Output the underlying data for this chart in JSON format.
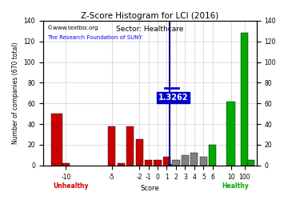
{
  "title": "Z-Score Histogram for LCI (2016)",
  "subtitle": "Sector: Healthcare",
  "xlabel": "Score",
  "ylabel": "Number of companies (670 total)",
  "watermark1": "©www.textbiz.org",
  "watermark2": "The Research Foundation of SUNY",
  "zscore_value": 1.3262,
  "ylim": [
    0,
    140
  ],
  "yticks": [
    0,
    20,
    40,
    60,
    80,
    100,
    120,
    140
  ],
  "bar_data": [
    {
      "x": -12,
      "height": 50,
      "color": "#cc0000"
    },
    {
      "x": -10,
      "height": 2,
      "color": "#cc0000"
    },
    {
      "x": -9,
      "height": 0,
      "color": "#cc0000"
    },
    {
      "x": -8,
      "height": 0,
      "color": "#cc0000"
    },
    {
      "x": -7,
      "height": 0,
      "color": "#cc0000"
    },
    {
      "x": -6,
      "height": 0,
      "color": "#cc0000"
    },
    {
      "x": -5,
      "height": 38,
      "color": "#cc0000"
    },
    {
      "x": -4,
      "height": 2,
      "color": "#cc0000"
    },
    {
      "x": -3,
      "height": 38,
      "color": "#cc0000"
    },
    {
      "x": -2,
      "height": 25,
      "color": "#cc0000"
    },
    {
      "x": -1,
      "height": 5,
      "color": "#cc0000"
    },
    {
      "x": 0,
      "height": 5,
      "color": "#cc0000"
    },
    {
      "x": 1,
      "height": 8,
      "color": "#cc0000"
    },
    {
      "x": 2,
      "height": 5,
      "color": "#808080"
    },
    {
      "x": 3,
      "height": 10,
      "color": "#808080"
    },
    {
      "x": 4,
      "height": 12,
      "color": "#808080"
    },
    {
      "x": 5,
      "height": 8,
      "color": "#808080"
    },
    {
      "x": 6,
      "height": 20,
      "color": "#00aa00"
    },
    {
      "x": 10,
      "height": 62,
      "color": "#00aa00"
    },
    {
      "x": 100,
      "height": 128,
      "color": "#00aa00"
    },
    {
      "x": 101,
      "height": 5,
      "color": "#00aa00"
    }
  ],
  "unhealthy_label": "Unhealthy",
  "healthy_label": "Healthy",
  "unhealthy_color": "#cc0000",
  "healthy_color": "#00aa00",
  "background_color": "#ffffff",
  "grid_color": "#aaaaaa",
  "annotation_box_color": "#0000cc",
  "annotation_text_color": "#ffffff",
  "vline_color": "#00008b",
  "xtick_labels": [
    "-10",
    "-5",
    "-2",
    "-1",
    "0",
    "1",
    "2",
    "3",
    "4",
    "5",
    "6",
    "10",
    "100"
  ],
  "xtick_positions": [
    -10,
    -5,
    -2,
    -1,
    0,
    1,
    2,
    3,
    4,
    5,
    6,
    10,
    100
  ]
}
